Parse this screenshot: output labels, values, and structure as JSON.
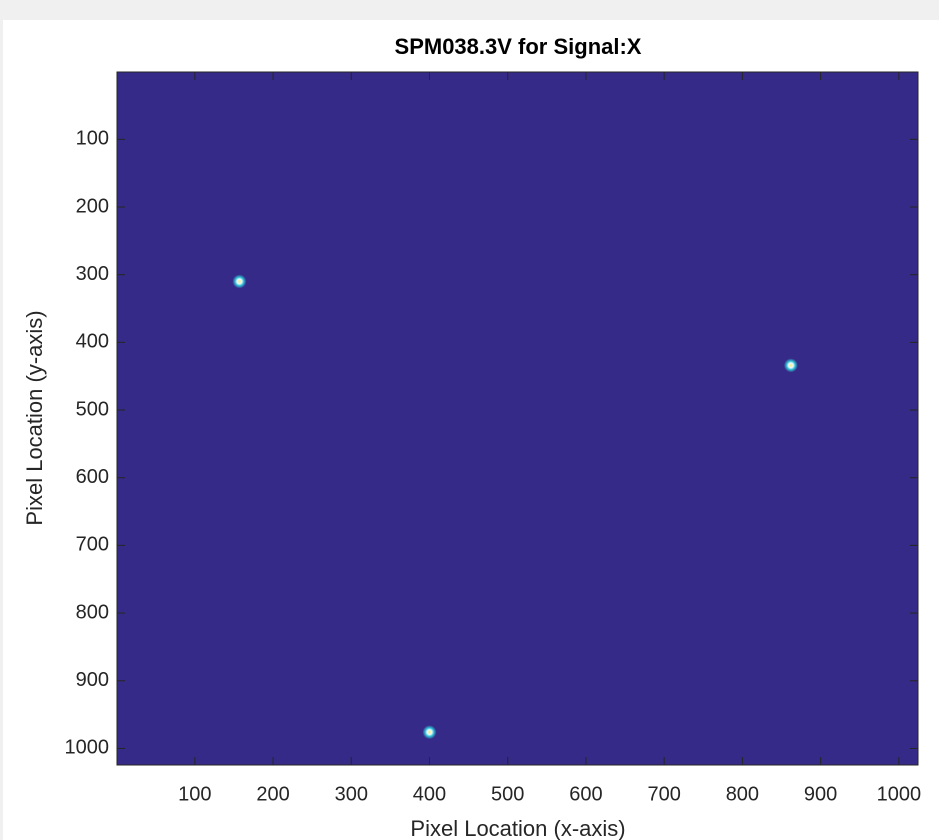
{
  "chart_data": {
    "type": "scatter",
    "title": "SPM038.3V for Signal:X",
    "x_label": "Pixel Location (x-axis)",
    "y_label": "Pixel Location (y-axis)",
    "background_color": "#352a87",
    "y_reversed": true,
    "xlim": [
      0.5,
      1024.5
    ],
    "ylim": [
      0.5,
      1024.5
    ],
    "xticks": [
      100,
      200,
      300,
      400,
      500,
      600,
      700,
      800,
      900,
      1000
    ],
    "yticks": [
      100,
      200,
      300,
      400,
      500,
      600,
      700,
      800,
      900,
      1000
    ],
    "series": [
      {
        "color": "#2fc3d6",
        "x": [
          157,
          862,
          400
        ],
        "values": [
          310,
          434,
          976
        ]
      }
    ]
  }
}
